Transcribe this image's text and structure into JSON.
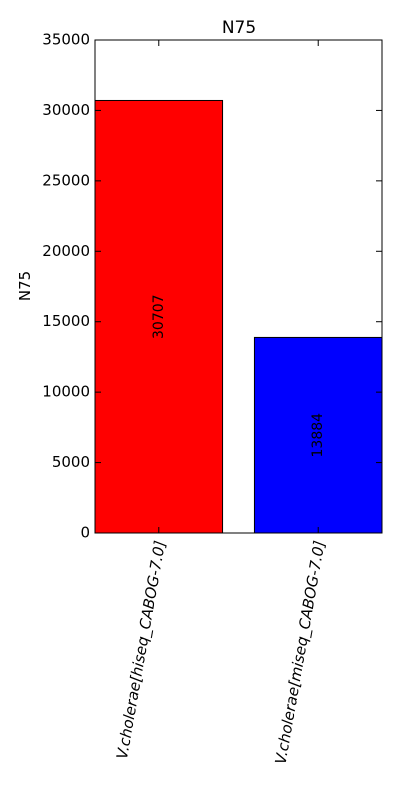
{
  "chart_data": {
    "type": "bar",
    "title": "N75",
    "ylabel": "N75",
    "xlabel": "",
    "categories": [
      "V.cholerae[hiseq_CABOG-7.0]",
      "V.cholerae[miseq_CABOG-7.0]"
    ],
    "values": [
      30707,
      13884
    ],
    "data_labels": [
      "30707",
      "13884"
    ],
    "colors": [
      "#ff0000",
      "#0000ff"
    ],
    "ylim": [
      0,
      35000
    ],
    "yticks": [
      0,
      5000,
      10000,
      15000,
      20000,
      25000,
      30000,
      35000
    ],
    "ytick_labels": [
      "0",
      "5000",
      "10000",
      "15000",
      "20000",
      "25000",
      "30000",
      "35000"
    ],
    "grid": false,
    "legend": "none"
  }
}
